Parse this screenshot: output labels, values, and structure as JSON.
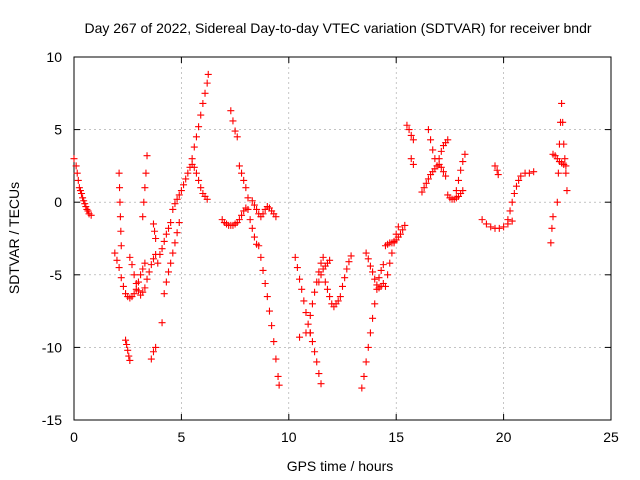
{
  "chart_data": {
    "type": "scatter",
    "title": "Day 267 of 2022, Sidereal Day-to-day VTEC variation (SDTVAR) for receiver bndr",
    "xlabel": "GPS time / hours",
    "ylabel": "SDTVAR / TECUs",
    "xlim": [
      0,
      25
    ],
    "ylim": [
      -15,
      10
    ],
    "xticks": [
      0,
      5,
      10,
      15,
      20,
      25
    ],
    "yticks": [
      -15,
      -10,
      -5,
      0,
      5,
      10
    ],
    "grid": true,
    "marker": "+",
    "color": "#ff0000",
    "series": [
      {
        "name": "SDTVAR",
        "points": [
          [
            0.0,
            3.0
          ],
          [
            0.1,
            2.5
          ],
          [
            0.15,
            2.0
          ],
          [
            0.2,
            1.5
          ],
          [
            0.25,
            1.0
          ],
          [
            0.3,
            0.8
          ],
          [
            0.35,
            0.6
          ],
          [
            0.4,
            0.3
          ],
          [
            0.45,
            0.1
          ],
          [
            0.5,
            -0.1
          ],
          [
            0.55,
            -0.3
          ],
          [
            0.6,
            -0.5
          ],
          [
            0.65,
            -0.6
          ],
          [
            0.7,
            -0.8
          ],
          [
            0.8,
            -0.9
          ],
          [
            1.9,
            -3.5
          ],
          [
            2.0,
            -4.0
          ],
          [
            2.1,
            -4.5
          ],
          [
            2.2,
            -5.2
          ],
          [
            2.3,
            -5.8
          ],
          [
            2.4,
            -6.3
          ],
          [
            2.5,
            -6.5
          ],
          [
            2.6,
            -6.6
          ],
          [
            2.7,
            -6.5
          ],
          [
            2.8,
            -6.3
          ],
          [
            2.9,
            -6.0
          ],
          [
            3.0,
            -5.5
          ],
          [
            3.1,
            -5.0
          ],
          [
            3.2,
            -4.6
          ],
          [
            3.3,
            -4.2
          ],
          [
            2.1,
            2.0
          ],
          [
            2.12,
            1.0
          ],
          [
            2.14,
            0.0
          ],
          [
            2.16,
            -1.0
          ],
          [
            2.18,
            -2.0
          ],
          [
            2.2,
            -3.0
          ],
          [
            2.4,
            -9.5
          ],
          [
            2.45,
            -9.8
          ],
          [
            2.5,
            -10.2
          ],
          [
            2.55,
            -10.6
          ],
          [
            2.6,
            -10.9
          ],
          [
            2.6,
            -3.8
          ],
          [
            2.7,
            -4.3
          ],
          [
            2.8,
            -5.0
          ],
          [
            2.9,
            -5.6
          ],
          [
            3.0,
            -6.1
          ],
          [
            3.1,
            -6.4
          ],
          [
            3.2,
            -6.2
          ],
          [
            3.3,
            -5.9
          ],
          [
            3.4,
            -5.3
          ],
          [
            3.5,
            -4.8
          ],
          [
            3.6,
            -4.3
          ],
          [
            3.7,
            -3.9
          ],
          [
            3.8,
            -3.6
          ],
          [
            3.2,
            -1.0
          ],
          [
            3.25,
            0.0
          ],
          [
            3.3,
            1.0
          ],
          [
            3.35,
            2.0
          ],
          [
            3.4,
            3.2
          ],
          [
            3.7,
            -1.5
          ],
          [
            3.75,
            -2.0
          ],
          [
            3.8,
            -2.5
          ],
          [
            3.6,
            -10.8
          ],
          [
            3.7,
            -10.3
          ],
          [
            3.8,
            -10.0
          ],
          [
            4.1,
            -8.3
          ],
          [
            3.9,
            -4.2
          ],
          [
            4.0,
            -3.6
          ],
          [
            4.1,
            -3.2
          ],
          [
            4.2,
            -2.7
          ],
          [
            4.3,
            -2.2
          ],
          [
            4.4,
            -1.8
          ],
          [
            4.5,
            -1.4
          ],
          [
            4.2,
            -6.3
          ],
          [
            4.3,
            -5.5
          ],
          [
            4.4,
            -4.8
          ],
          [
            4.5,
            -4.2
          ],
          [
            4.6,
            -3.5
          ],
          [
            4.7,
            -2.8
          ],
          [
            4.8,
            -2.1
          ],
          [
            4.9,
            -1.4
          ],
          [
            4.6,
            -0.5
          ],
          [
            4.7,
            -0.1
          ],
          [
            4.8,
            0.2
          ],
          [
            4.9,
            0.5
          ],
          [
            5.0,
            0.8
          ],
          [
            5.1,
            1.2
          ],
          [
            5.2,
            1.6
          ],
          [
            5.3,
            2.0
          ],
          [
            5.4,
            2.4
          ],
          [
            5.5,
            2.6
          ],
          [
            5.6,
            2.4
          ],
          [
            5.7,
            2.0
          ],
          [
            5.8,
            1.5
          ],
          [
            5.9,
            1.0
          ],
          [
            6.0,
            0.6
          ],
          [
            6.1,
            0.4
          ],
          [
            6.2,
            0.2
          ],
          [
            5.5,
            3.0
          ],
          [
            5.6,
            3.8
          ],
          [
            5.7,
            4.5
          ],
          [
            5.8,
            5.2
          ],
          [
            5.9,
            6.0
          ],
          [
            6.0,
            6.8
          ],
          [
            6.1,
            7.5
          ],
          [
            6.2,
            8.2
          ],
          [
            6.25,
            8.8
          ],
          [
            6.9,
            -1.2
          ],
          [
            7.0,
            -1.4
          ],
          [
            7.1,
            -1.5
          ],
          [
            7.2,
            -1.6
          ],
          [
            7.3,
            -1.6
          ],
          [
            7.4,
            -1.6
          ],
          [
            7.5,
            -1.5
          ],
          [
            7.6,
            -1.4
          ],
          [
            7.7,
            -1.2
          ],
          [
            7.8,
            -0.9
          ],
          [
            7.9,
            -0.6
          ],
          [
            8.0,
            -0.4
          ],
          [
            7.3,
            6.3
          ],
          [
            7.4,
            5.6
          ],
          [
            7.5,
            4.9
          ],
          [
            7.6,
            4.5
          ],
          [
            7.7,
            2.5
          ],
          [
            7.8,
            2.0
          ],
          [
            7.9,
            1.5
          ],
          [
            8.0,
            1.0
          ],
          [
            8.1,
            0.3
          ],
          [
            8.1,
            -0.5
          ],
          [
            8.2,
            -1.2
          ],
          [
            8.3,
            -1.8
          ],
          [
            8.4,
            -2.4
          ],
          [
            8.5,
            -2.9
          ],
          [
            8.3,
            0.1
          ],
          [
            8.4,
            -0.2
          ],
          [
            8.5,
            -0.5
          ],
          [
            8.6,
            -0.8
          ],
          [
            8.7,
            -1.0
          ],
          [
            8.8,
            -0.8
          ],
          [
            8.9,
            -0.5
          ],
          [
            9.0,
            -0.3
          ],
          [
            9.1,
            -0.4
          ],
          [
            9.2,
            -0.6
          ],
          [
            9.3,
            -0.8
          ],
          [
            9.4,
            -1.0
          ],
          [
            8.6,
            -3.0
          ],
          [
            8.7,
            -3.8
          ],
          [
            8.8,
            -4.7
          ],
          [
            8.9,
            -5.6
          ],
          [
            9.0,
            -6.5
          ],
          [
            9.1,
            -7.5
          ],
          [
            9.2,
            -8.5
          ],
          [
            9.3,
            -9.6
          ],
          [
            9.4,
            -10.8
          ],
          [
            9.5,
            -12.0
          ],
          [
            9.55,
            -12.6
          ],
          [
            10.3,
            -3.8
          ],
          [
            10.4,
            -4.5
          ],
          [
            10.5,
            -5.3
          ],
          [
            10.6,
            -6.0
          ],
          [
            10.7,
            -6.8
          ],
          [
            10.8,
            -7.6
          ],
          [
            10.9,
            -8.4
          ],
          [
            11.0,
            -9.0
          ],
          [
            10.5,
            -9.3
          ],
          [
            10.8,
            -9.0
          ],
          [
            11.0,
            -9.0
          ],
          [
            11.1,
            -9.6
          ],
          [
            11.2,
            -10.3
          ],
          [
            11.3,
            -11.0
          ],
          [
            11.4,
            -11.8
          ],
          [
            11.5,
            -12.5
          ],
          [
            11.0,
            -7.8
          ],
          [
            11.1,
            -7.0
          ],
          [
            11.2,
            -6.2
          ],
          [
            11.3,
            -5.5
          ],
          [
            11.4,
            -4.8
          ],
          [
            11.5,
            -4.2
          ],
          [
            11.6,
            -3.8
          ],
          [
            11.4,
            -5.5
          ],
          [
            11.5,
            -5.0
          ],
          [
            11.6,
            -4.6
          ],
          [
            11.7,
            -4.4
          ],
          [
            11.8,
            -4.2
          ],
          [
            11.9,
            -4.0
          ],
          [
            11.7,
            -5.5
          ],
          [
            11.8,
            -6.0
          ],
          [
            11.9,
            -6.5
          ],
          [
            12.0,
            -7.0
          ],
          [
            12.1,
            -7.2
          ],
          [
            12.2,
            -7.0
          ],
          [
            12.3,
            -6.8
          ],
          [
            12.4,
            -6.5
          ],
          [
            12.5,
            -5.8
          ],
          [
            12.6,
            -5.2
          ],
          [
            12.7,
            -4.6
          ],
          [
            12.8,
            -4.1
          ],
          [
            12.9,
            -3.7
          ],
          [
            13.4,
            -12.8
          ],
          [
            13.5,
            -12.0
          ],
          [
            13.6,
            -11.0
          ],
          [
            13.7,
            -10.0
          ],
          [
            13.8,
            -9.0
          ],
          [
            13.9,
            -8.0
          ],
          [
            14.0,
            -7.0
          ],
          [
            14.1,
            -6.0
          ],
          [
            14.2,
            -5.2
          ],
          [
            14.3,
            -4.7
          ],
          [
            14.4,
            -4.3
          ],
          [
            13.6,
            -3.5
          ],
          [
            13.7,
            -3.9
          ],
          [
            13.8,
            -4.4
          ],
          [
            13.9,
            -4.8
          ],
          [
            14.0,
            -5.3
          ],
          [
            14.1,
            -5.7
          ],
          [
            14.2,
            -5.9
          ],
          [
            14.3,
            -5.8
          ],
          [
            14.4,
            -5.6
          ],
          [
            14.5,
            -5.8
          ],
          [
            14.6,
            -5.0
          ],
          [
            14.7,
            -4.2
          ],
          [
            14.8,
            -3.5
          ],
          [
            14.9,
            -2.8
          ],
          [
            15.0,
            -2.2
          ],
          [
            15.1,
            -1.7
          ],
          [
            14.5,
            -3.0
          ],
          [
            14.6,
            -2.9
          ],
          [
            14.7,
            -2.8
          ],
          [
            14.8,
            -2.8
          ],
          [
            14.9,
            -2.7
          ],
          [
            15.0,
            -2.6
          ],
          [
            15.1,
            -2.4
          ],
          [
            15.2,
            -2.2
          ],
          [
            15.3,
            -1.9
          ],
          [
            15.4,
            -1.6
          ],
          [
            15.5,
            5.3
          ],
          [
            15.6,
            5.0
          ],
          [
            15.7,
            4.6
          ],
          [
            15.8,
            4.3
          ],
          [
            15.7,
            3.0
          ],
          [
            15.8,
            2.6
          ],
          [
            16.2,
            0.7
          ],
          [
            16.3,
            1.0
          ],
          [
            16.4,
            1.3
          ],
          [
            16.5,
            1.6
          ],
          [
            16.6,
            1.9
          ],
          [
            16.7,
            2.1
          ],
          [
            16.8,
            2.3
          ],
          [
            16.9,
            2.5
          ],
          [
            17.0,
            2.6
          ],
          [
            17.1,
            2.4
          ],
          [
            17.2,
            2.1
          ],
          [
            17.3,
            1.8
          ],
          [
            16.5,
            5.0
          ],
          [
            16.6,
            4.3
          ],
          [
            16.7,
            3.6
          ],
          [
            16.8,
            3.0
          ],
          [
            16.9,
            2.5
          ],
          [
            17.0,
            3.0
          ],
          [
            17.1,
            3.5
          ],
          [
            17.2,
            3.9
          ],
          [
            17.3,
            4.1
          ],
          [
            17.4,
            4.3
          ],
          [
            17.4,
            0.5
          ],
          [
            17.5,
            0.3
          ],
          [
            17.6,
            0.2
          ],
          [
            17.7,
            0.2
          ],
          [
            17.8,
            0.3
          ],
          [
            17.9,
            0.4
          ],
          [
            18.0,
            0.6
          ],
          [
            18.1,
            0.8
          ],
          [
            17.8,
            0.8
          ],
          [
            17.9,
            1.5
          ],
          [
            18.0,
            2.2
          ],
          [
            18.1,
            2.8
          ],
          [
            18.2,
            3.3
          ],
          [
            19.0,
            -1.2
          ],
          [
            19.2,
            -1.5
          ],
          [
            19.4,
            -1.7
          ],
          [
            19.6,
            -1.8
          ],
          [
            19.8,
            -1.8
          ],
          [
            20.0,
            -1.7
          ],
          [
            20.2,
            -1.5
          ],
          [
            20.4,
            -1.3
          ],
          [
            19.6,
            2.5
          ],
          [
            19.7,
            2.2
          ],
          [
            19.75,
            1.9
          ],
          [
            20.2,
            -1.2
          ],
          [
            20.3,
            -0.6
          ],
          [
            20.4,
            0.0
          ],
          [
            20.5,
            0.6
          ],
          [
            20.6,
            1.1
          ],
          [
            20.7,
            1.5
          ],
          [
            20.8,
            1.8
          ],
          [
            21.0,
            2.0
          ],
          [
            21.2,
            2.0
          ],
          [
            21.4,
            2.1
          ],
          [
            22.2,
            -2.8
          ],
          [
            22.25,
            -1.8
          ],
          [
            22.3,
            -1.0
          ],
          [
            22.3,
            3.3
          ],
          [
            22.4,
            3.2
          ],
          [
            22.5,
            3.0
          ],
          [
            22.6,
            2.8
          ],
          [
            22.7,
            2.7
          ],
          [
            22.8,
            2.6
          ],
          [
            22.9,
            2.5
          ],
          [
            22.5,
            0.0
          ],
          [
            22.55,
            2.0
          ],
          [
            22.6,
            4.0
          ],
          [
            22.65,
            5.5
          ],
          [
            22.7,
            6.8
          ],
          [
            22.75,
            5.5
          ],
          [
            22.8,
            4.0
          ],
          [
            22.85,
            3.0
          ],
          [
            22.9,
            2.0
          ],
          [
            22.95,
            0.8
          ]
        ]
      }
    ]
  }
}
